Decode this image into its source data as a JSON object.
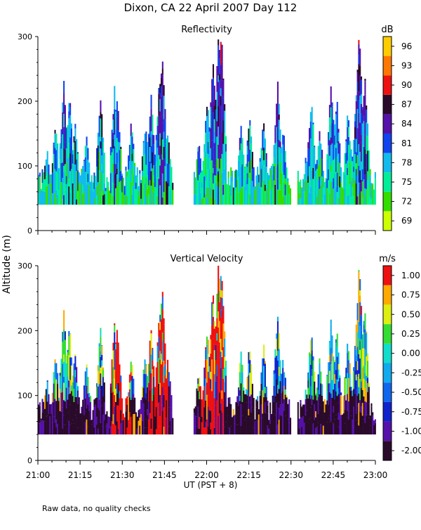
{
  "title": "Dixon, CA 22 April 2007  Day 112",
  "ylabel": "Altitude (m)",
  "xlabel": "UT  (PST + 8)",
  "footnote": "Raw data, no quality checks",
  "chart_data": [
    {
      "type": "heatmap",
      "title": "Reflectivity",
      "x_range_minutes": [
        0,
        120
      ],
      "xticks": [
        "21:00",
        "21:15",
        "21:30",
        "21:45",
        "22:00",
        "22:15",
        "22:30",
        "22:45",
        "23:00"
      ],
      "ylim": [
        0,
        300
      ],
      "yticks": [
        0,
        100,
        200,
        300
      ],
      "colorbar": {
        "unit": "dB",
        "labels": [
          "69",
          "72",
          "75",
          "78",
          "81",
          "84",
          "87",
          "90",
          "93",
          "96"
        ],
        "colors": [
          "#ccff00",
          "#33dd00",
          "#00ee99",
          "#11bbee",
          "#1144ee",
          "#5511aa",
          "#2a0a2a",
          "#ee1111",
          "#ff7700",
          "#ffcc00"
        ]
      },
      "data_gaps_minutes": [
        [
          48,
          55
        ],
        [
          90,
          92
        ]
      ],
      "max_echo_height_m": 300
    },
    {
      "type": "heatmap",
      "title": "Vertical Velocity",
      "x_range_minutes": [
        0,
        120
      ],
      "xticks": [
        "21:00",
        "21:15",
        "21:30",
        "21:45",
        "22:00",
        "22:15",
        "22:30",
        "22:45",
        "23:00"
      ],
      "ylim": [
        0,
        300
      ],
      "yticks": [
        0,
        100,
        200,
        300
      ],
      "colorbar": {
        "unit": "m/s",
        "labels": [
          "-2.00",
          "-1.00",
          "-0.75",
          "-0.50",
          "-0.25",
          "0.00",
          "0.25",
          "0.50",
          "0.75",
          "1.00"
        ],
        "colors": [
          "#2a0a2a",
          "#5511aa",
          "#1122cc",
          "#1166ee",
          "#11aaee",
          "#11ddcc",
          "#33dd33",
          "#ddee11",
          "#ffaa00",
          "#ee1111"
        ]
      },
      "data_gaps_minutes": [
        [
          48,
          55
        ],
        [
          90,
          92
        ]
      ],
      "max_echo_height_m": 300
    }
  ]
}
